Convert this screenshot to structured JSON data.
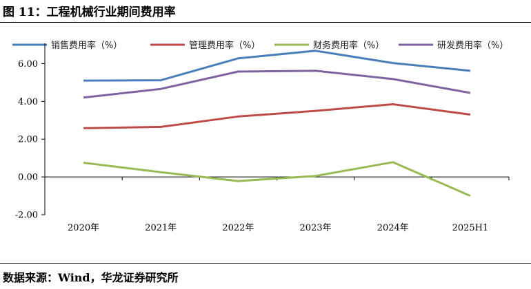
{
  "title": "图 11：工程机械行业期间费用率",
  "source": "数据来源：Wind，华龙证券研究所",
  "chart_data": {
    "type": "line",
    "categories": [
      "2020年",
      "2021年",
      "2022年",
      "2023年",
      "2024年",
      "2025H1"
    ],
    "ylim": [
      -2,
      7
    ],
    "yticks": [
      -2,
      0,
      2,
      4,
      6
    ],
    "ytick_labels": [
      "-2.00",
      "0.00",
      "2.00",
      "4.00",
      "6.00"
    ],
    "series": [
      {
        "name": "销售费用率（%）",
        "color": "#4a7ebb",
        "values": [
          5.1,
          5.12,
          6.28,
          6.68,
          6.03,
          5.62
        ]
      },
      {
        "name": "管理费用率（%）",
        "color": "#be4b48",
        "values": [
          2.58,
          2.65,
          3.2,
          3.5,
          3.85,
          3.3
        ]
      },
      {
        "name": "财务费用率（%）",
        "color": "#98b954",
        "values": [
          0.75,
          0.25,
          -0.22,
          0.05,
          0.78,
          -1.0
        ]
      },
      {
        "name": "研发费用率（%）",
        "color": "#7e62a1",
        "values": [
          4.2,
          4.66,
          5.58,
          5.62,
          5.18,
          4.45
        ]
      }
    ]
  }
}
